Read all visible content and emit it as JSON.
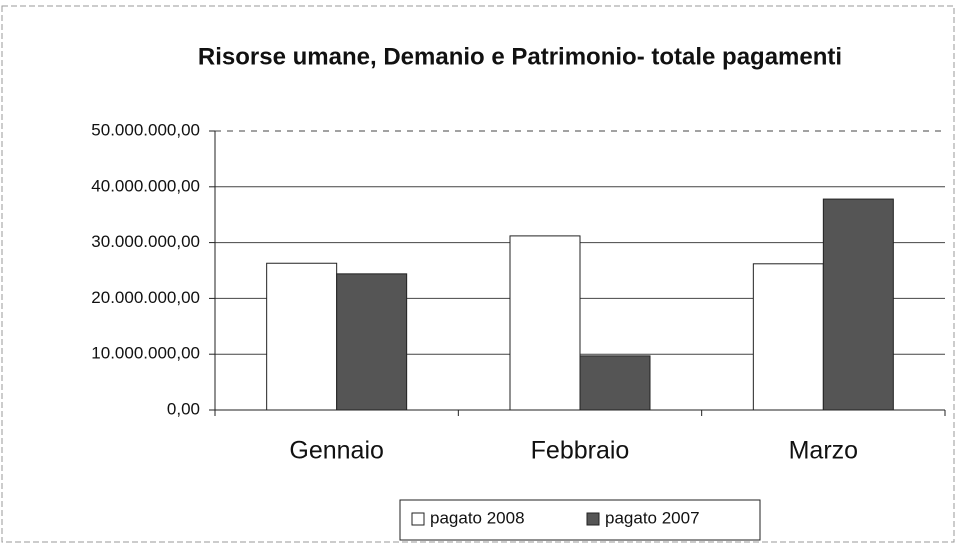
{
  "chart_data": {
    "type": "bar",
    "title": "Risorse umane, Demanio e Patrimonio- totale pagamenti",
    "categories": [
      "Gennaio",
      "Febbraio",
      "Marzo"
    ],
    "series": [
      {
        "name": "pagato 2008",
        "color": "#ffffff",
        "values": [
          26300000,
          31200000,
          26200000
        ]
      },
      {
        "name": "pagato 2007",
        "color": "#555555",
        "values": [
          24400000,
          9700000,
          37800000
        ]
      }
    ],
    "ylim": [
      0,
      50000000
    ],
    "yticks": [
      {
        "value": 0,
        "label": "0,00"
      },
      {
        "value": 10000000,
        "label": "10.000.000,00"
      },
      {
        "value": 20000000,
        "label": "20.000.000,00"
      },
      {
        "value": 30000000,
        "label": "30.000.000,00"
      },
      {
        "value": 40000000,
        "label": "40.000.000,00"
      },
      {
        "value": 50000000,
        "label": "50.000.000,00"
      }
    ],
    "grid": true,
    "legend": "bottom"
  }
}
